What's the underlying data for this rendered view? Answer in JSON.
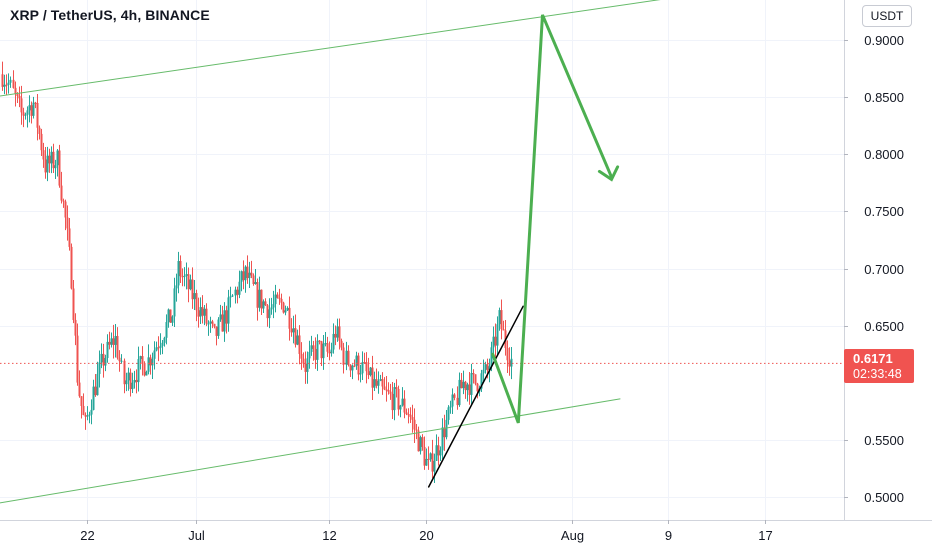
{
  "header": {
    "title": "XRP / TetherUS, 4h, BINANCE",
    "currency": "USDT"
  },
  "last_price": {
    "value": "0.6171",
    "countdown": "02:33:48",
    "level": 0.6171
  },
  "colors": {
    "up": "#26a69a",
    "down": "#ef5350",
    "channel": "#66bb6a",
    "projection": "#4caf50",
    "trendline": "#000000",
    "price_line": "#ef5350"
  },
  "chart_data": {
    "type": "candlestick",
    "symbol": "XRP / TetherUS",
    "interval": "4h",
    "exchange": "BINANCE",
    "y_range": [
      0.48,
      0.935
    ],
    "y_ticks": [
      "0.9000",
      "0.8500",
      "0.8000",
      "0.7500",
      "0.7000",
      "0.6500",
      "0.5500",
      "0.5000"
    ],
    "y_tick_values": [
      0.9,
      0.85,
      0.8,
      0.75,
      0.7,
      0.65,
      0.55,
      0.5
    ],
    "x_ticks": [
      {
        "label": "22",
        "day": 22
      },
      {
        "label": "Jul",
        "day": 31
      },
      {
        "label": "12",
        "day": 42
      },
      {
        "label": "20",
        "day": 50
      },
      {
        "label": "Aug",
        "day": 62
      },
      {
        "label": "9",
        "day": 70
      },
      {
        "label": "17",
        "day": 78
      }
    ],
    "x_range": [
      14.8,
      84.5
    ],
    "series_anchors": [
      [
        15.0,
        0.87
      ],
      [
        15.6,
        0.86
      ],
      [
        16.5,
        0.835
      ],
      [
        17.5,
        0.845
      ],
      [
        18.5,
        0.79
      ],
      [
        19.5,
        0.795
      ],
      [
        20.2,
        0.74
      ],
      [
        20.7,
        0.69
      ],
      [
        21.2,
        0.6
      ],
      [
        21.8,
        0.56
      ],
      [
        22.3,
        0.585
      ],
      [
        23.3,
        0.62
      ],
      [
        24.3,
        0.64
      ],
      [
        25.0,
        0.6
      ],
      [
        26.0,
        0.61
      ],
      [
        27.0,
        0.62
      ],
      [
        28.0,
        0.64
      ],
      [
        29.0,
        0.66
      ],
      [
        29.5,
        0.7
      ],
      [
        30.5,
        0.68
      ],
      [
        31.5,
        0.66
      ],
      [
        32.5,
        0.64
      ],
      [
        33.5,
        0.66
      ],
      [
        34.2,
        0.68
      ],
      [
        35.0,
        0.695
      ],
      [
        36.0,
        0.675
      ],
      [
        37.0,
        0.665
      ],
      [
        38.2,
        0.67
      ],
      [
        39.0,
        0.65
      ],
      [
        40.0,
        0.615
      ],
      [
        41.0,
        0.63
      ],
      [
        42.0,
        0.625
      ],
      [
        42.5,
        0.645
      ],
      [
        43.3,
        0.62
      ],
      [
        44.5,
        0.615
      ],
      [
        45.5,
        0.6
      ],
      [
        46.5,
        0.59
      ],
      [
        47.5,
        0.585
      ],
      [
        48.5,
        0.575
      ],
      [
        49.5,
        0.545
      ],
      [
        50.2,
        0.525
      ],
      [
        51.0,
        0.545
      ],
      [
        52.0,
        0.575
      ],
      [
        53.0,
        0.6
      ],
      [
        54.0,
        0.6
      ],
      [
        55.0,
        0.61
      ],
      [
        55.5,
        0.63
      ],
      [
        56.0,
        0.655
      ],
      [
        56.5,
        0.635
      ],
      [
        57.0,
        0.62
      ]
    ],
    "annotations": {
      "upper_channel": [
        [
          14.8,
          0.851
        ],
        [
          71.0,
          0.938
        ]
      ],
      "lower_channel": [
        [
          14.8,
          0.495
        ],
        [
          66.0,
          0.586
        ]
      ],
      "black_trendline": [
        [
          50.2,
          0.509
        ],
        [
          58.0,
          0.667
        ]
      ],
      "projection_path": [
        [
          55.5,
          0.625
        ],
        [
          57.6,
          0.565
        ],
        [
          59.6,
          0.922
        ],
        [
          65.3,
          0.78
        ]
      ],
      "arrow_head": [
        [
          64.3,
          0.785
        ],
        [
          65.3,
          0.778
        ],
        [
          65.8,
          0.789
        ]
      ]
    }
  }
}
